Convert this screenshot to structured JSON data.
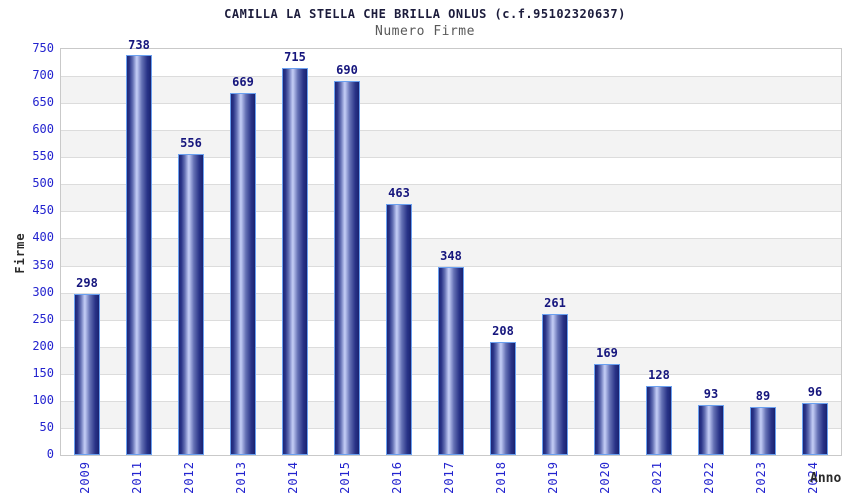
{
  "chart_data": {
    "type": "bar",
    "title": "CAMILLA LA STELLA CHE BRILLA ONLUS (c.f.95102320637)",
    "subtitle": "Numero Firme",
    "xlabel": "Anno",
    "ylabel": "Firme",
    "categories": [
      "2009",
      "2011",
      "2012",
      "2013",
      "2014",
      "2015",
      "2016",
      "2017",
      "2018",
      "2019",
      "2020",
      "2021",
      "2022",
      "2023",
      "2024"
    ],
    "values": [
      298,
      738,
      556,
      669,
      715,
      690,
      463,
      348,
      208,
      261,
      169,
      128,
      93,
      89,
      96
    ],
    "ylim": [
      0,
      750
    ],
    "ytick_step": 50,
    "grid": true,
    "legend": "none",
    "colors": {
      "title": "#1c1c3c",
      "subtitle": "#595959",
      "tick_label": "#2424cf",
      "value_label": "#16167d",
      "axis_title": "#2b2b2b",
      "bar_edge": "#6aa0f0",
      "bar_dark": "#1d2676",
      "bar_light": "#c3cdf4",
      "band_gray": "#f3f3f3",
      "band_white": "#ffffff",
      "grid_line": "#dcdcdc",
      "plot_border": "#c9c9c9"
    }
  }
}
